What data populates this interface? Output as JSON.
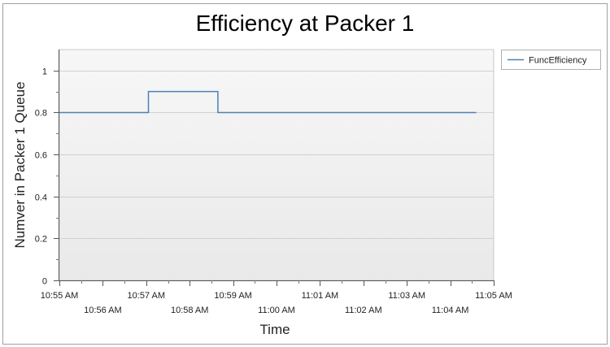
{
  "chart_data": {
    "type": "line",
    "title": "Efficiency at Packer 1",
    "xlabel": "Time",
    "ylabel": "Numver in Packer 1 Queue",
    "ylim": [
      0,
      1.1
    ],
    "yticks": [
      0,
      0.2,
      0.4,
      0.6,
      0.8,
      1
    ],
    "ytick_labels": [
      "0",
      "0.2",
      "0.4",
      "0.6",
      "0.8",
      "1"
    ],
    "xlim": [
      "10:55 AM",
      "11:05 AM"
    ],
    "xtick_labels_upper": [
      "10:55 AM",
      "10:57 AM",
      "10:59 AM",
      "11:01 AM",
      "11:03 AM",
      "11:05 AM"
    ],
    "xtick_labels_lower": [
      "10:56 AM",
      "10:58 AM",
      "11:00 AM",
      "11:02 AM",
      "11:04 AM"
    ],
    "grid": true,
    "legend_position": "right",
    "series": [
      {
        "name": "FuncEfficiency",
        "color": "#4f7fb8",
        "step": true,
        "points": [
          {
            "x": "10:55:00 AM",
            "y": 0.8
          },
          {
            "x": "10:57:03 AM",
            "y": 0.8
          },
          {
            "x": "10:57:03 AM",
            "y": 0.9
          },
          {
            "x": "10:58:39 AM",
            "y": 0.9
          },
          {
            "x": "10:58:39 AM",
            "y": 0.8
          },
          {
            "x": "11:04:36 AM",
            "y": 0.8
          }
        ]
      }
    ]
  }
}
